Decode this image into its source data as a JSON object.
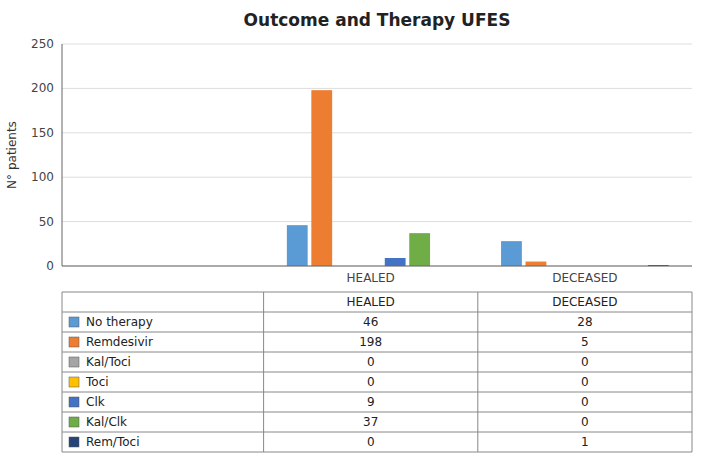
{
  "chart_data": {
    "type": "bar",
    "title": "Outcome and Therapy UFES",
    "ylabel": "N° patients",
    "categories": [
      "HEALED",
      "DECEASED"
    ],
    "series": [
      {
        "name": "No therapy",
        "color": "#5B9BD5",
        "values": [
          46,
          28
        ]
      },
      {
        "name": "Remdesivir",
        "color": "#ED7D31",
        "values": [
          198,
          5
        ]
      },
      {
        "name": "Kal/Toci",
        "color": "#A5A5A5",
        "values": [
          0,
          0
        ]
      },
      {
        "name": "Toci",
        "color": "#FFC000",
        "values": [
          0,
          0
        ]
      },
      {
        "name": "Clk",
        "color": "#4472C4",
        "values": [
          9,
          0
        ]
      },
      {
        "name": "Kal/Clk",
        "color": "#70AD47",
        "values": [
          37,
          0
        ]
      },
      {
        "name": "Rem/Toci",
        "color": "#264478",
        "values": [
          0,
          1
        ]
      }
    ],
    "ylim": [
      0,
      250
    ],
    "yticks": [
      0,
      50,
      100,
      150,
      200,
      250
    ],
    "grid": true
  }
}
